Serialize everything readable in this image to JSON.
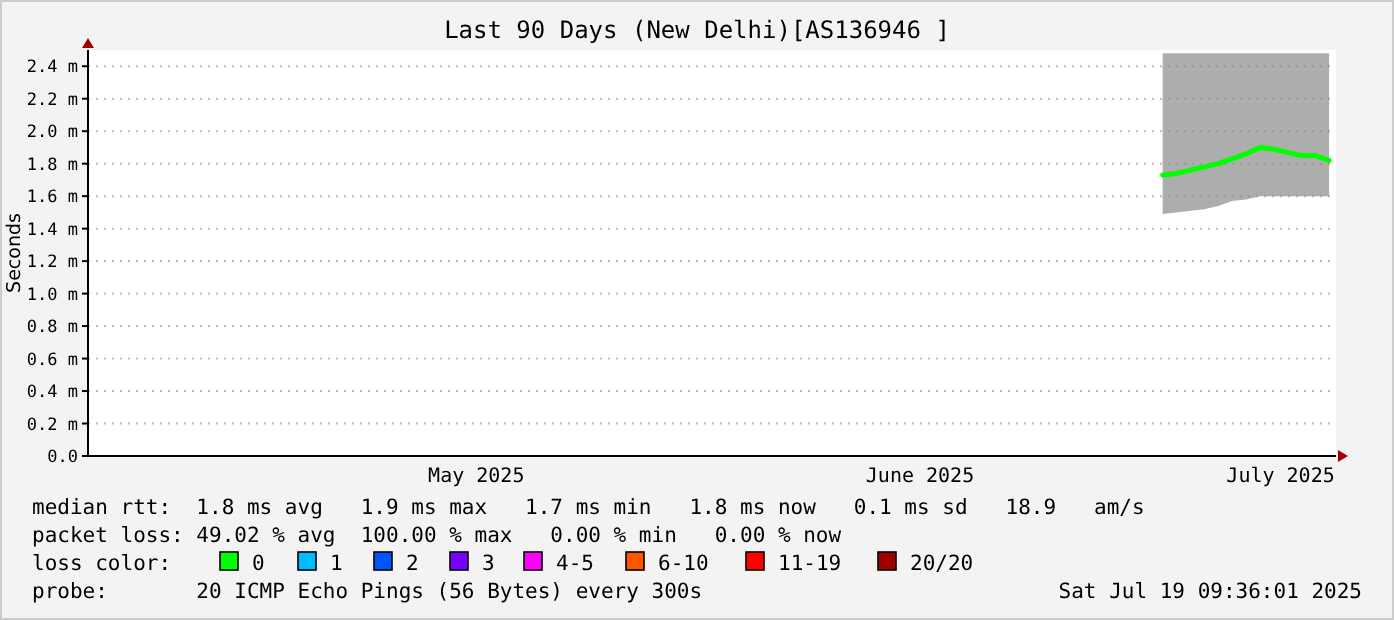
{
  "chart_data": {
    "type": "line",
    "title": "Last 90 Days (New Delhi)[AS136946 ]",
    "ylabel": "Seconds",
    "xlim": [
      "2025-04-20",
      "2025-07-19"
    ],
    "xticks": [
      {
        "value": "2025-05-18",
        "label": "May 2025"
      },
      {
        "value": "2025-06-19",
        "label": "June 2025"
      },
      {
        "value": "2025-07-15",
        "label": "July 2025"
      }
    ],
    "ylim": [
      0,
      2.5
    ],
    "yticks": [
      {
        "value": 0,
        "label": "0.0"
      },
      {
        "value": 0.2,
        "label": "0.2 m"
      },
      {
        "value": 0.4,
        "label": "0.4 m"
      },
      {
        "value": 0.6,
        "label": "0.6 m"
      },
      {
        "value": 0.8,
        "label": "0.8 m"
      },
      {
        "value": 1.0,
        "label": "1.0 m"
      },
      {
        "value": 1.2,
        "label": "1.2 m"
      },
      {
        "value": 1.4,
        "label": "1.4 m"
      },
      {
        "value": 1.6,
        "label": "1.6 m"
      },
      {
        "value": 1.8,
        "label": "1.8 m"
      },
      {
        "value": 2.0,
        "label": "2.0 m"
      },
      {
        "value": 2.2,
        "label": "2.2 m"
      },
      {
        "value": 2.4,
        "label": "2.4 m"
      }
    ],
    "grid": "y",
    "marker": "none",
    "line_style": "solid",
    "series": [
      {
        "color": "#00ff00",
        "x": [
          "2025-07-06T12:00",
          "2025-07-07T12:00",
          "2025-07-08T12:00",
          "2025-07-09T12:00",
          "2025-07-10T12:00",
          "2025-07-11T12:00",
          "2025-07-12T12:00",
          "2025-07-13T12:00",
          "2025-07-14T12:00",
          "2025-07-15T12:00",
          "2025-07-16T12:00",
          "2025-07-17T12:00",
          "2025-07-18T12:00"
        ],
        "values": [
          1.73,
          1.74,
          1.76,
          1.78,
          1.8,
          1.83,
          1.86,
          1.9,
          1.89,
          1.87,
          1.85,
          1.85,
          1.82
        ],
        "lower": [
          1.49,
          1.5,
          1.51,
          1.52,
          1.54,
          1.57,
          1.58,
          1.6,
          1.6,
          1.6,
          1.6,
          1.6,
          1.6
        ],
        "upper": [
          2.48,
          2.48,
          2.48,
          2.48,
          2.48,
          2.48,
          2.48,
          2.48,
          2.48,
          2.48,
          2.48,
          2.48,
          2.48
        ]
      }
    ],
    "annotations": [
      "median rtt:  1.8 ms avg   1.9 ms max   1.7 ms min   1.8 ms now   0.1 ms sd   18.9   am/s",
      "packet loss: 49.02 % avg  100.00 % max   0.00 % min   0.00 % now",
      "loss color:",
      "0",
      "1",
      "2",
      "3",
      "4-5",
      "6-10",
      "11-19",
      "20/20",
      "probe:       20 ICMP Echo Pings (56 Bytes) every 300s",
      "Sat Jul 19 09:36:01 2025"
    ]
  }
}
